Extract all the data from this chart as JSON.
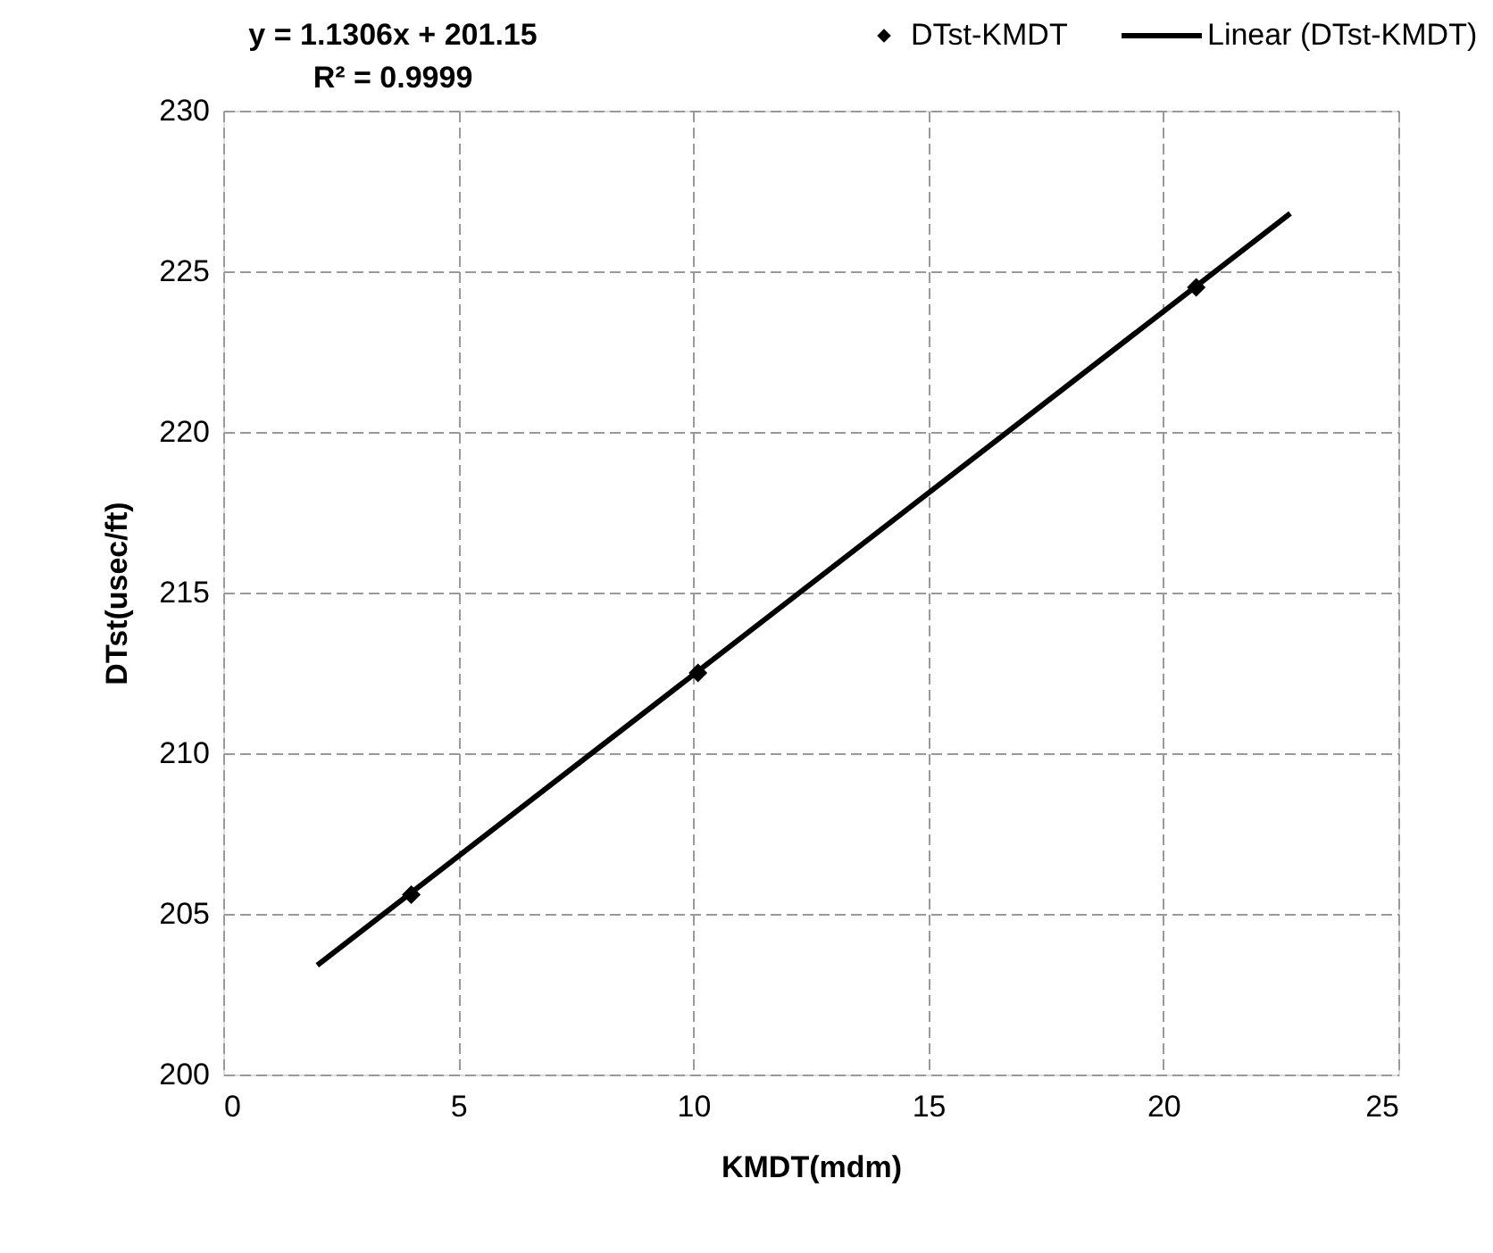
{
  "chart_data": {
    "type": "scatter",
    "xlabel": "KMDT(mdm)",
    "ylabel": "DTst(usec/ft)",
    "annotations": [
      "y = 1.1306x + 201.15",
      "R² = 0.9999"
    ],
    "series": [
      {
        "name": "DTst-KMDT",
        "color": "#000000",
        "marker": "diamond",
        "x": [
          4.0,
          10.1,
          20.7
        ],
        "values": [
          205.6,
          212.5,
          224.5
        ]
      },
      {
        "name": "Linear (DTst-KMDT)",
        "type": "line",
        "color": "#000000",
        "marker": "none",
        "line_style": "solid",
        "x": [
          2,
          22.7
        ],
        "values": [
          203.4,
          226.8
        ]
      }
    ],
    "xlim": [
      0,
      25
    ],
    "xticks": [
      0,
      5,
      10,
      15,
      20,
      25
    ],
    "ylim": [
      200,
      230
    ],
    "yticks": [
      200,
      205,
      210,
      215,
      220,
      225,
      230
    ],
    "grid": true,
    "legend": "top right"
  }
}
